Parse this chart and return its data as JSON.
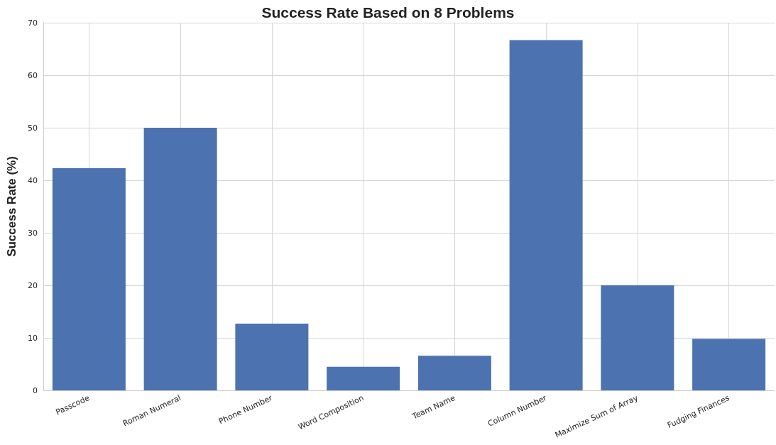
{
  "chart_data": {
    "type": "bar",
    "title": "Success Rate Based on 8 Problems",
    "ylabel": "Success Rate (%)",
    "categories": [
      "Passcode",
      "Roman Numeral",
      "Phone Number",
      "Word Composition",
      "Team Name",
      "Column Number",
      "Maximize Sum of Array",
      "Fudging Finances"
    ],
    "values": [
      42.3,
      50,
      12.7,
      4.5,
      6.6,
      66.7,
      20,
      9.8
    ],
    "color": "#4c72b0",
    "ylim": [
      0,
      70
    ],
    "yticks": [
      0,
      10,
      20,
      30,
      40,
      50,
      60,
      70
    ],
    "grid": true
  }
}
